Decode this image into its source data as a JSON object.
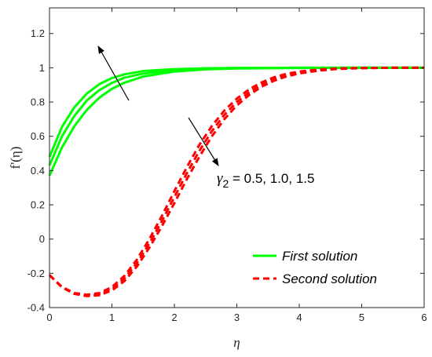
{
  "chart_data": {
    "type": "line",
    "xlabel": "η",
    "ylabel": "f'(η)",
    "xlim": [
      0,
      6
    ],
    "ylim": [
      -0.4,
      1.35
    ],
    "xticks": [
      "0",
      "1",
      "2",
      "3",
      "4",
      "5",
      "6"
    ],
    "yticks": [
      "-0.4",
      "-0.2",
      "0",
      "0.2",
      "0.4",
      "0.6",
      "0.8",
      "1",
      "1.2"
    ],
    "grid": false,
    "legend_position": "bottom-right",
    "annotation": {
      "text_sym": "γ",
      "text_sub": "2",
      "text_rest": " = 0.5, 1.0, 1.5"
    },
    "colors": {
      "first": "#00ff00",
      "second": "#ff0000"
    },
    "series": [
      {
        "name": "First solution",
        "group": "first",
        "style": "solid",
        "x": [
          0,
          0.2,
          0.4,
          0.6,
          0.8,
          1.0,
          1.2,
          1.5,
          2.0,
          2.5,
          3.0,
          4.0,
          5.0,
          6.0
        ],
        "y": [
          0.37,
          0.535,
          0.66,
          0.755,
          0.826,
          0.877,
          0.913,
          0.949,
          0.978,
          0.991,
          0.996,
          0.999,
          1.0,
          1.0
        ]
      },
      {
        "name": "",
        "group": "first",
        "style": "solid",
        "x": [
          0,
          0.2,
          0.4,
          0.6,
          0.8,
          1.0,
          1.2,
          1.5,
          2.0,
          2.5,
          3.0,
          4.0,
          5.0,
          6.0
        ],
        "y": [
          0.43,
          0.6,
          0.72,
          0.81,
          0.87,
          0.912,
          0.942,
          0.966,
          0.986,
          0.994,
          0.998,
          1.0,
          1.0,
          1.0
        ]
      },
      {
        "name": "",
        "group": "first",
        "style": "solid",
        "x": [
          0,
          0.2,
          0.4,
          0.6,
          0.8,
          1.0,
          1.2,
          1.5,
          2.0,
          2.5,
          3.0,
          4.0,
          5.0,
          6.0
        ],
        "y": [
          0.48,
          0.655,
          0.77,
          0.85,
          0.905,
          0.94,
          0.962,
          0.981,
          0.992,
          0.997,
          0.999,
          1.0,
          1.0,
          1.0
        ]
      },
      {
        "name": "Second solution",
        "group": "second",
        "style": "dashed",
        "x": [
          0,
          0.2,
          0.4,
          0.6,
          0.8,
          1.0,
          1.2,
          1.4,
          1.6,
          1.8,
          2.0,
          2.2,
          2.4,
          2.6,
          2.8,
          3.0,
          3.2,
          3.4,
          3.6,
          3.8,
          4.0,
          4.3,
          4.6,
          5.0,
          5.5,
          6.0
        ],
        "y": [
          -0.21,
          -0.28,
          -0.315,
          -0.325,
          -0.315,
          -0.28,
          -0.215,
          -0.12,
          0.0,
          0.135,
          0.28,
          0.42,
          0.55,
          0.66,
          0.75,
          0.82,
          0.875,
          0.915,
          0.945,
          0.965,
          0.978,
          0.99,
          0.996,
          0.999,
          1.0,
          1.0
        ]
      },
      {
        "name": "",
        "group": "second",
        "style": "dashed",
        "x": [
          0,
          0.2,
          0.4,
          0.6,
          0.8,
          1.0,
          1.2,
          1.4,
          1.6,
          1.8,
          2.0,
          2.2,
          2.4,
          2.6,
          2.8,
          3.0,
          3.2,
          3.4,
          3.6,
          3.8,
          4.0,
          4.3,
          4.6,
          5.0,
          5.5,
          6.0
        ],
        "y": [
          -0.21,
          -0.28,
          -0.318,
          -0.33,
          -0.322,
          -0.29,
          -0.23,
          -0.14,
          -0.025,
          0.105,
          0.245,
          0.385,
          0.515,
          0.63,
          0.725,
          0.8,
          0.858,
          0.902,
          0.935,
          0.958,
          0.973,
          0.987,
          0.995,
          0.999,
          1.0,
          1.0
        ]
      },
      {
        "name": "",
        "group": "second",
        "style": "dashed",
        "x": [
          0,
          0.2,
          0.4,
          0.6,
          0.8,
          1.0,
          1.2,
          1.4,
          1.6,
          1.8,
          2.0,
          2.2,
          2.4,
          2.6,
          2.8,
          3.0,
          3.2,
          3.4,
          3.6,
          3.8,
          4.0,
          4.3,
          4.6,
          5.0,
          5.5,
          6.0
        ],
        "y": [
          -0.21,
          -0.282,
          -0.32,
          -0.333,
          -0.328,
          -0.3,
          -0.245,
          -0.16,
          -0.05,
          0.075,
          0.21,
          0.35,
          0.48,
          0.6,
          0.7,
          0.78,
          0.842,
          0.89,
          0.925,
          0.95,
          0.967,
          0.983,
          0.993,
          0.998,
          1.0,
          1.0
        ]
      }
    ]
  }
}
